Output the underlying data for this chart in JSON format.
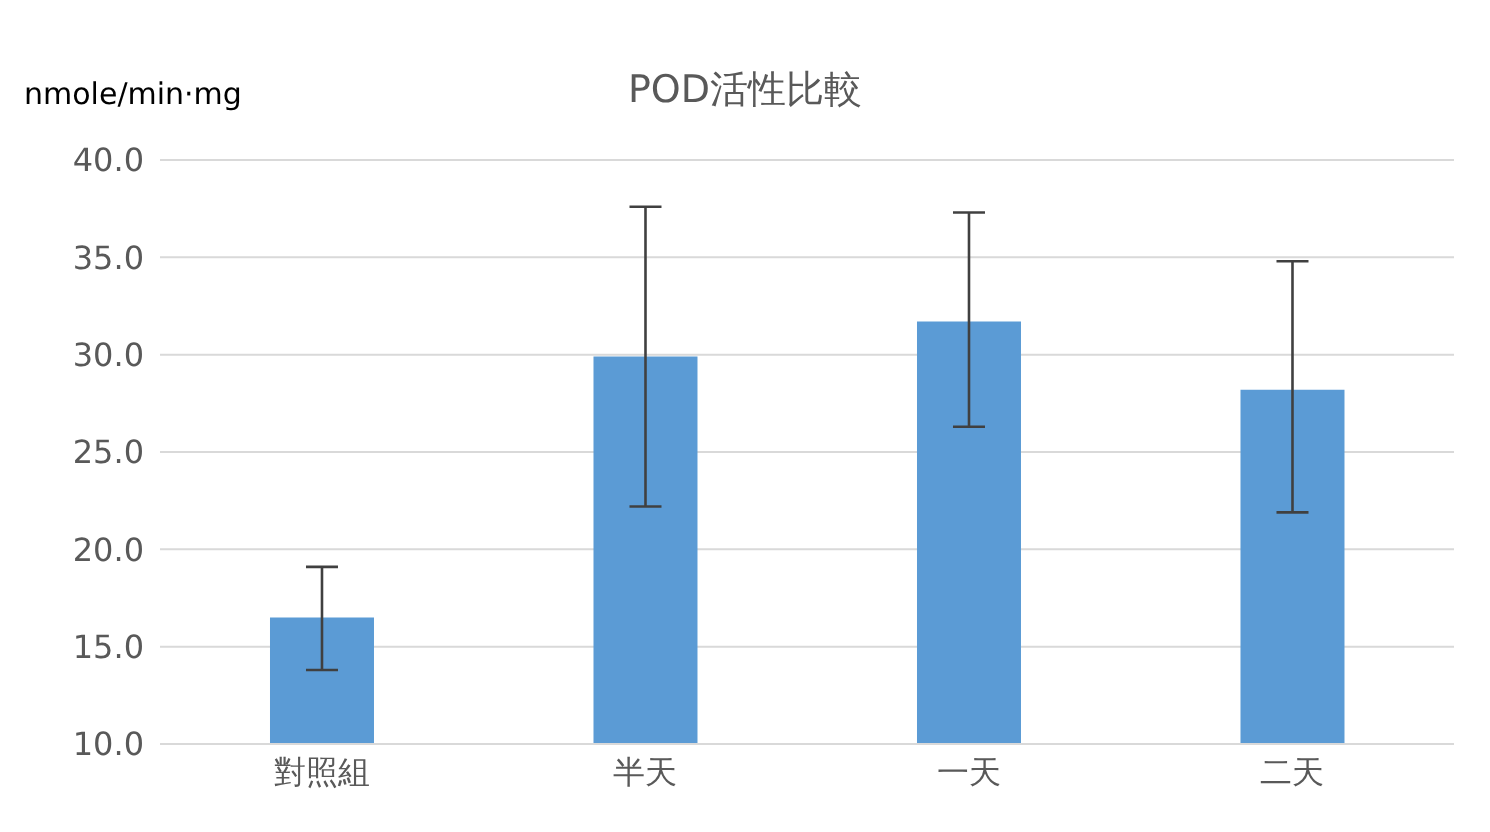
{
  "chart_data": {
    "type": "bar",
    "title": "POD活性比較",
    "ylabel": "nmole/min·mg",
    "categories": [
      "對照組",
      "半天",
      "一天",
      "二天"
    ],
    "values": [
      16.5,
      29.9,
      31.7,
      28.2
    ],
    "errors": [
      [
        13.8,
        19.1
      ],
      [
        22.2,
        37.6
      ],
      [
        26.3,
        37.3
      ],
      [
        21.9,
        34.8
      ]
    ],
    "color": "#5b9bd5",
    "ylim": [
      10,
      40
    ],
    "yticks": [
      {
        "value": 10,
        "label": "10.0"
      },
      {
        "value": 15,
        "label": "15.0"
      },
      {
        "value": 20,
        "label": "20.0"
      },
      {
        "value": 25,
        "label": "25.0"
      },
      {
        "value": 30,
        "label": "30.0"
      },
      {
        "value": 35,
        "label": "35.0"
      },
      {
        "value": 40,
        "label": "40.0"
      }
    ],
    "grid": "y",
    "legend": false
  }
}
